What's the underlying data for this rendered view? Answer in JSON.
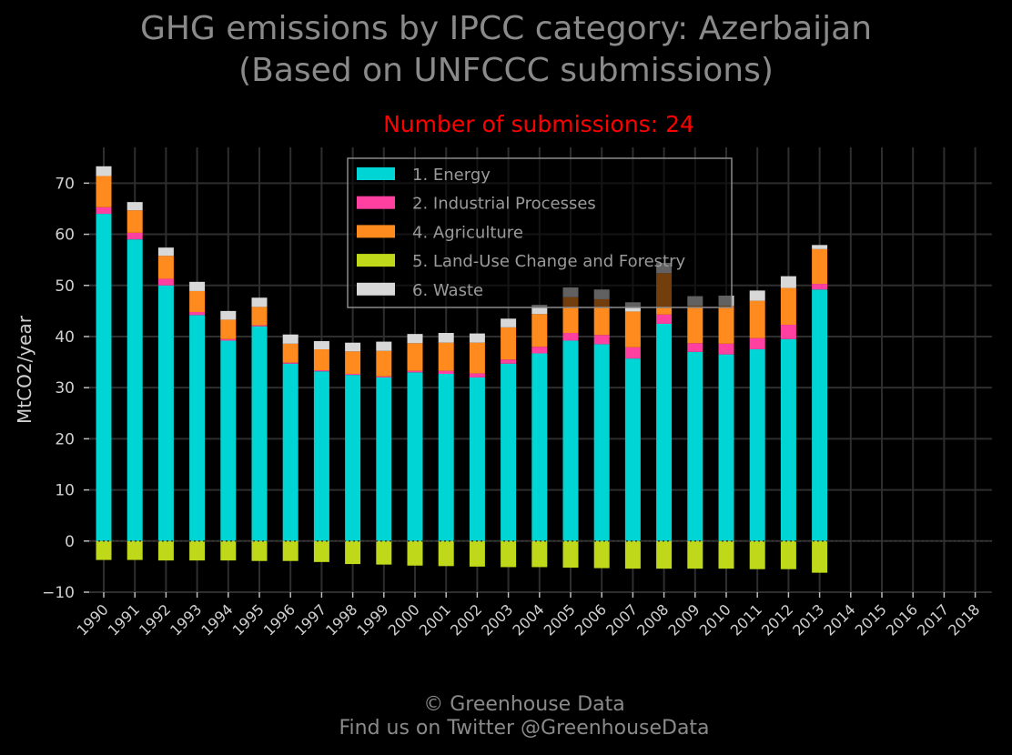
{
  "page": {
    "title_line1": "GHG emissions by IPCC category: Azerbaijan",
    "title_line2": "(Based on UNFCCC submissions)",
    "subtitle": "Number of submissions: 24",
    "footer_line1": "© Greenhouse Data",
    "footer_line2": "Find us on Twitter @GreenhouseData"
  },
  "chart_data": {
    "type": "bar",
    "stacked": true,
    "ylabel": "MtCO2/year",
    "xlabel": "",
    "ylim": [
      -10,
      77
    ],
    "yticks": [
      -10,
      0,
      10,
      20,
      30,
      40,
      50,
      60,
      70
    ],
    "ytick_labels": [
      "−10",
      "0",
      "10",
      "20",
      "30",
      "40",
      "50",
      "60",
      "70"
    ],
    "grid": true,
    "legend_position": "top-center",
    "categories": [
      "1990",
      "1991",
      "1992",
      "1993",
      "1994",
      "1995",
      "1996",
      "1997",
      "1998",
      "1999",
      "2000",
      "2001",
      "2002",
      "2003",
      "2004",
      "2005",
      "2006",
      "2007",
      "2008",
      "2009",
      "2010",
      "2011",
      "2012",
      "2013",
      "2014",
      "2015",
      "2016",
      "2017",
      "2018"
    ],
    "series": [
      {
        "name": "1. Energy",
        "color": "#00d5d5",
        "values": [
          64,
          59,
          50,
          44.2,
          39.2,
          42,
          34.7,
          33.2,
          32.5,
          32,
          33,
          32.7,
          32,
          34.7,
          36.7,
          39.2,
          38.5,
          35.7,
          42.5,
          37,
          36.5,
          37.5,
          39.5,
          49.2,
          null,
          null,
          null,
          null,
          null
        ]
      },
      {
        "name": "2. Industrial Processes",
        "color": "#ff40a0",
        "values": [
          1.3,
          1.3,
          1.3,
          0.6,
          0.3,
          0.2,
          0.2,
          0.2,
          0.2,
          0.2,
          0.3,
          0.6,
          0.8,
          0.8,
          1.3,
          1.5,
          1.8,
          2.2,
          1.8,
          1.7,
          2.1,
          2.2,
          2.8,
          1.1,
          null,
          null,
          null,
          null,
          null
        ]
      },
      {
        "name": "4. Agriculture",
        "color": "#ff8a1e",
        "values": [
          6.1,
          4.4,
          4.5,
          4.1,
          3.8,
          3.6,
          3.7,
          4.1,
          4.4,
          5,
          5.4,
          5.5,
          6,
          6.3,
          6.4,
          7,
          7,
          7,
          8.1,
          7.3,
          7.4,
          7.3,
          7.2,
          6.8,
          null,
          null,
          null,
          null,
          null
        ]
      },
      {
        "name": "5. Land-Use Change and Forestry",
        "color": "#c0d81a",
        "values": [
          -3.7,
          -3.7,
          -3.8,
          -3.8,
          -3.8,
          -3.9,
          -3.9,
          -4.1,
          -4.5,
          -4.6,
          -4.8,
          -4.9,
          -5,
          -5.1,
          -5.1,
          -5.2,
          -5.3,
          -5.4,
          -5.4,
          -5.4,
          -5.4,
          -5.5,
          -5.5,
          -6.2,
          null,
          null,
          null,
          null,
          null
        ]
      },
      {
        "name": "6. Waste",
        "color": "#d8d8d8",
        "values": [
          1.9,
          1.6,
          1.6,
          1.8,
          1.7,
          1.8,
          1.8,
          1.6,
          1.7,
          1.8,
          1.8,
          1.9,
          1.8,
          1.7,
          1.8,
          1.9,
          1.9,
          1.8,
          2,
          1.9,
          2,
          2,
          2.3,
          0.8,
          null,
          null,
          null,
          null,
          null
        ]
      }
    ]
  }
}
